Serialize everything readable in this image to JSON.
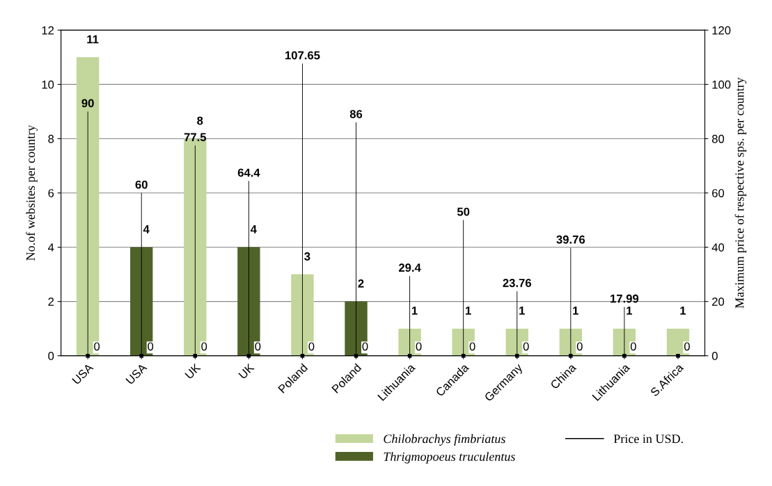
{
  "chart_data": {
    "type": "bar",
    "ylabel": "No.of websites per country",
    "y2label": "Maximum price of respective sps. per country",
    "categories": [
      "USA",
      "USA",
      "UK",
      "UK",
      "Poland",
      "Poland",
      "Lithuania",
      "Canada",
      "Germany",
      "China",
      "Lithuania",
      "S.Africa"
    ],
    "series": [
      {
        "name": "Chilobrachys fimbriatus",
        "color": "#c3d69b",
        "values": [
          11,
          null,
          8,
          null,
          3,
          null,
          1,
          1,
          1,
          1,
          1,
          1
        ]
      },
      {
        "name": "Thrigmopoeus truculentus",
        "color": "#4f6228",
        "values": [
          null,
          4,
          null,
          4,
          null,
          2,
          null,
          null,
          null,
          null,
          null,
          null
        ]
      },
      {
        "name": "Price in USD.",
        "type": "bar",
        "axis": "y2",
        "color": "#000000",
        "values": [
          90,
          60,
          77.5,
          64.4,
          107.65,
          86,
          29.4,
          50,
          23.76,
          39.76,
          17.99,
          null
        ]
      },
      {
        "type": "scatter",
        "axis": "y2",
        "marker": "square",
        "color": "#000000",
        "values": [
          0,
          0,
          0,
          0,
          0,
          0,
          0,
          0,
          0,
          0,
          0,
          0
        ]
      }
    ],
    "ylim": [
      0,
      12
    ],
    "yticks": [
      0,
      2,
      4,
      6,
      8,
      10,
      12
    ],
    "y2lim": [
      0,
      120
    ],
    "y2ticks": [
      0,
      20,
      40,
      60,
      80,
      100,
      120
    ],
    "grid": "y",
    "legend": "bottom",
    "data_labels": true
  }
}
